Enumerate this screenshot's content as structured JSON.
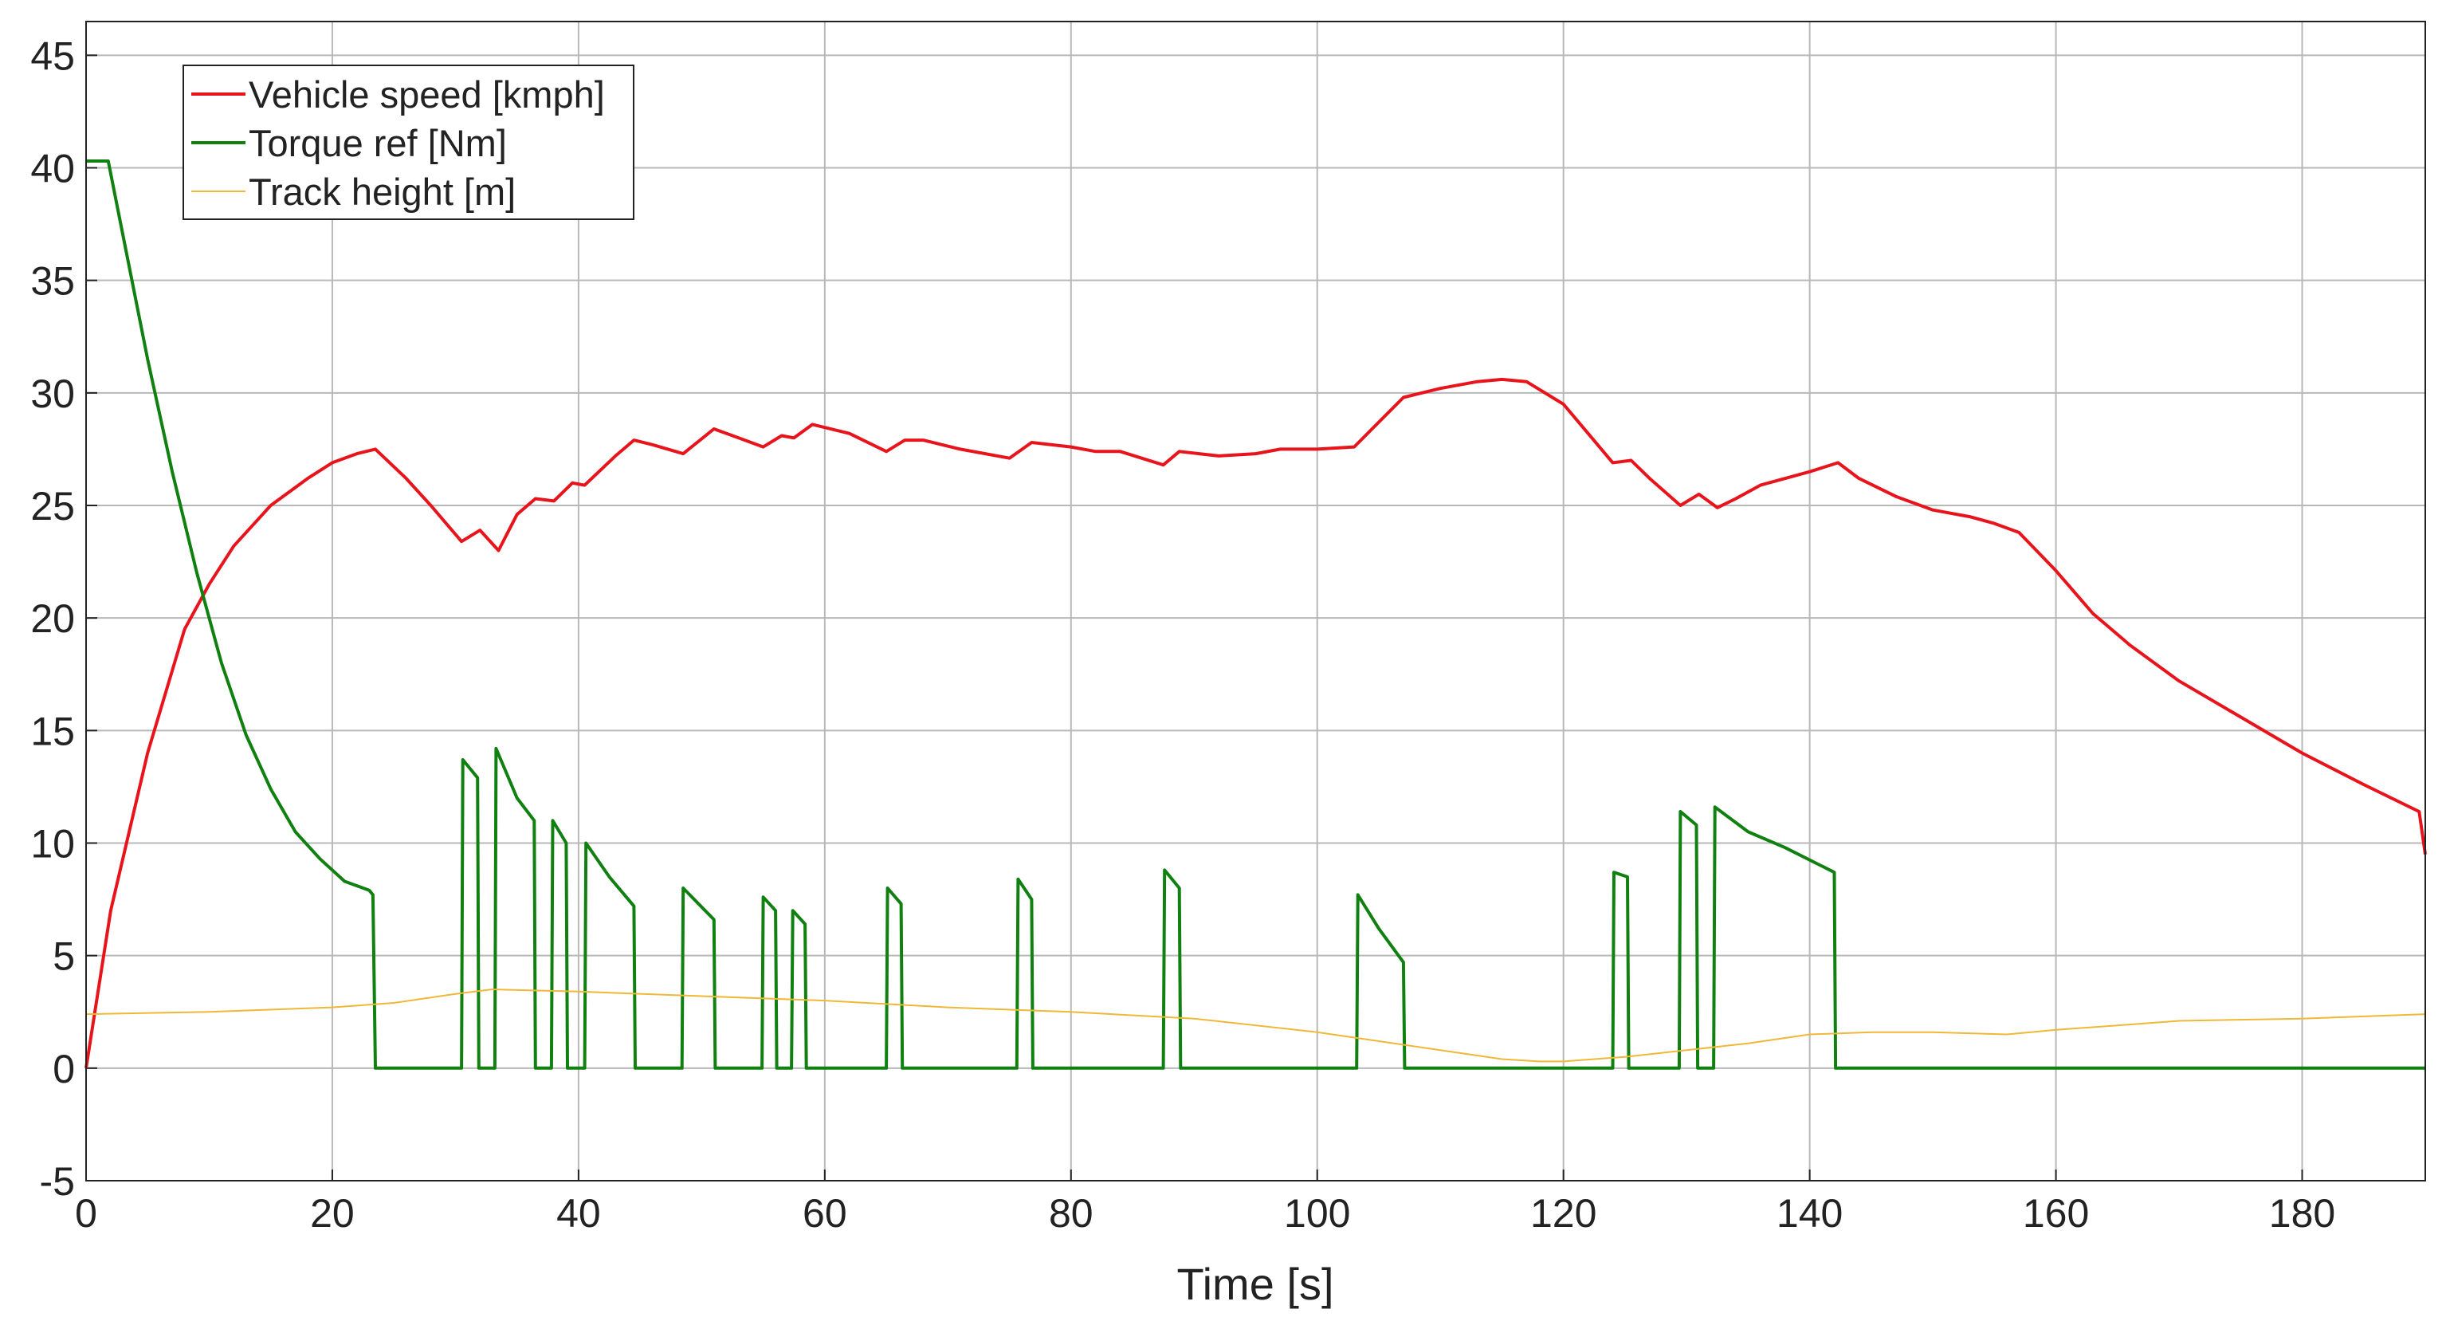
{
  "chart_data": {
    "type": "line",
    "xlabel": "Time [s]",
    "xlim": [
      0,
      190
    ],
    "ylim": [
      -5,
      46.5
    ],
    "xticks": [
      0,
      20,
      40,
      60,
      80,
      100,
      120,
      140,
      160,
      180
    ],
    "yticks": [
      -5,
      0,
      5,
      10,
      15,
      20,
      25,
      30,
      35,
      40,
      45
    ],
    "grid": true,
    "legend": "upper left",
    "series": [
      {
        "name": "Vehicle speed [kmph]",
        "color": "#e8141c",
        "x": [
          0,
          2,
          5,
          8,
          10,
          12,
          15,
          18,
          20,
          22,
          23.5,
          26,
          28,
          30.5,
          32,
          33.5,
          35,
          36.5,
          38,
          39.5,
          40.5,
          43,
          44.5,
          46,
          48.5,
          51,
          53,
          55,
          56.5,
          57.5,
          59,
          62,
          65,
          66.5,
          68,
          71,
          75,
          76.8,
          80,
          82,
          84,
          87.5,
          88.8,
          92,
          95,
          97,
          100,
          103,
          105,
          107,
          110,
          113,
          115,
          117,
          120,
          122,
          124,
          125.5,
          127,
          129.5,
          131,
          132.5,
          134,
          136,
          140,
          142.3,
          144,
          147,
          150,
          153,
          155,
          157,
          160,
          163,
          166,
          170,
          175,
          180,
          185,
          189.5,
          190
        ],
        "values": [
          0,
          7,
          14,
          19.5,
          21.5,
          23.2,
          25,
          26.2,
          26.9,
          27.3,
          27.5,
          26.2,
          25,
          23.4,
          23.9,
          23,
          24.6,
          25.3,
          25.2,
          26,
          25.9,
          27.2,
          27.9,
          27.7,
          27.3,
          28.4,
          28,
          27.6,
          28.1,
          28,
          28.6,
          28.2,
          27.4,
          27.9,
          27.9,
          27.5,
          27.1,
          27.8,
          27.6,
          27.4,
          27.4,
          26.8,
          27.4,
          27.2,
          27.3,
          27.5,
          27.5,
          27.6,
          28.7,
          29.8,
          30.2,
          30.5,
          30.6,
          30.5,
          29.5,
          28.2,
          26.9,
          27,
          26.2,
          25,
          25.5,
          24.9,
          25.3,
          25.9,
          26.5,
          26.9,
          26.2,
          25.4,
          24.8,
          24.5,
          24.2,
          23.8,
          22.1,
          20.2,
          18.8,
          17.2,
          15.6,
          14,
          12.6,
          11.4,
          9.5
        ]
      },
      {
        "name": "Torque ref [Nm]",
        "color": "#108010",
        "x": [
          0,
          1.8,
          3,
          5,
          7,
          9,
          11,
          13,
          15,
          17,
          19,
          21,
          23,
          23.3,
          23.5,
          30.5,
          30.6,
          31.8,
          31.9,
          33.2,
          33.3,
          35,
          36.4,
          36.5,
          37.8,
          37.9,
          39,
          39.1,
          40.5,
          40.6,
          42.5,
          44.5,
          44.6,
          48.4,
          48.5,
          51,
          51.1,
          54.9,
          55,
          56,
          56.1,
          57.3,
          57.4,
          58.4,
          58.5,
          65,
          65.1,
          66.2,
          66.3,
          75.6,
          75.7,
          76.8,
          76.9,
          87.5,
          87.6,
          88.8,
          88.9,
          103.2,
          103.3,
          105,
          107,
          107.1,
          124,
          124.1,
          125.2,
          125.3,
          129.4,
          129.5,
          130.8,
          130.9,
          132.2,
          132.3,
          135,
          138,
          142,
          142.1,
          190
        ],
        "values": [
          40.3,
          40.3,
          37,
          31.5,
          26.5,
          22,
          18,
          14.8,
          12.4,
          10.5,
          9.3,
          8.3,
          7.9,
          7.7,
          0,
          0,
          13.7,
          12.9,
          0,
          0,
          14.2,
          12,
          11,
          0,
          0,
          11,
          10,
          0,
          0,
          10,
          8.5,
          7.2,
          0,
          0,
          8,
          6.6,
          0,
          0,
          7.6,
          7,
          0,
          0,
          7,
          6.4,
          0,
          0,
          8,
          7.3,
          0,
          0,
          8.4,
          7.5,
          0,
          0,
          8.8,
          8,
          0,
          0,
          7.7,
          6.2,
          4.7,
          0,
          0,
          8.7,
          8.5,
          0,
          0,
          11.4,
          10.8,
          0,
          0,
          11.6,
          10.5,
          9.8,
          8.7,
          0,
          0
        ]
      },
      {
        "name": "Track height [m]",
        "color": "#f0b838",
        "x": [
          0,
          10,
          20,
          25,
          30,
          33,
          40,
          50,
          60,
          70,
          80,
          90,
          100,
          105,
          110,
          115,
          118,
          120,
          125,
          130,
          135,
          140,
          145,
          150,
          156,
          160,
          165,
          170,
          180,
          190
        ],
        "values": [
          2.4,
          2.5,
          2.7,
          2.9,
          3.3,
          3.5,
          3.4,
          3.2,
          3.0,
          2.7,
          2.5,
          2.2,
          1.6,
          1.2,
          0.8,
          0.4,
          0.3,
          0.3,
          0.5,
          0.8,
          1.1,
          1.5,
          1.6,
          1.6,
          1.5,
          1.7,
          1.9,
          2.1,
          2.2,
          2.4
        ]
      }
    ]
  }
}
